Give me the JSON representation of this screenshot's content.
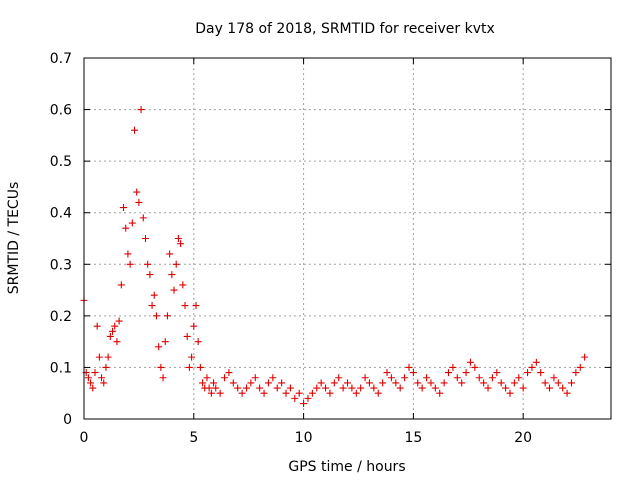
{
  "chart_data": {
    "type": "scatter",
    "title": "Day 178 of 2018, SRMTID for receiver kvtx",
    "xlabel": "GPS time / hours",
    "ylabel": "SRMTID / TECUs",
    "xlim": [
      0,
      24
    ],
    "ylim": [
      0,
      0.7
    ],
    "xticks": [
      0,
      5,
      10,
      15,
      20
    ],
    "yticks": [
      0,
      0.1,
      0.2,
      0.3,
      0.4,
      0.5,
      0.6,
      0.7
    ],
    "xtick_labels": [
      "0",
      "5",
      "10",
      "15",
      "20"
    ],
    "ytick_labels": [
      "0",
      "0.1",
      "0.2",
      "0.3",
      "0.4",
      "0.5",
      "0.6",
      "0.7"
    ],
    "grid": true,
    "marker": "+",
    "color": "#e00000",
    "series": [
      {
        "name": "SRMTID",
        "x": [
          0.0,
          0.1,
          0.2,
          0.3,
          0.4,
          0.5,
          0.6,
          0.7,
          0.8,
          0.9,
          1.0,
          1.1,
          1.2,
          1.3,
          1.4,
          1.5,
          1.6,
          1.7,
          1.8,
          1.9,
          2.0,
          2.1,
          2.2,
          2.3,
          2.4,
          2.5,
          2.6,
          2.7,
          2.8,
          2.9,
          3.0,
          3.1,
          3.2,
          3.3,
          3.4,
          3.5,
          3.6,
          3.7,
          3.8,
          3.9,
          4.0,
          4.1,
          4.2,
          4.3,
          4.4,
          4.5,
          4.6,
          4.7,
          4.8,
          4.9,
          5.0,
          5.1,
          5.2,
          5.3,
          5.4,
          5.5,
          5.6,
          5.7,
          5.8,
          5.9,
          6.0,
          6.2,
          6.4,
          6.6,
          6.8,
          7.0,
          7.2,
          7.4,
          7.6,
          7.8,
          8.0,
          8.2,
          8.4,
          8.6,
          8.8,
          9.0,
          9.2,
          9.4,
          9.6,
          9.8,
          10.0,
          10.2,
          10.4,
          10.6,
          10.8,
          11.0,
          11.2,
          11.4,
          11.6,
          11.8,
          12.0,
          12.2,
          12.4,
          12.6,
          12.8,
          13.0,
          13.2,
          13.4,
          13.6,
          13.8,
          14.0,
          14.2,
          14.4,
          14.6,
          14.8,
          15.0,
          15.2,
          15.4,
          15.6,
          15.8,
          16.0,
          16.2,
          16.4,
          16.6,
          16.8,
          17.0,
          17.2,
          17.4,
          17.6,
          17.8,
          18.0,
          18.2,
          18.4,
          18.6,
          18.8,
          19.0,
          19.2,
          19.4,
          19.6,
          19.8,
          20.0,
          20.2,
          20.4,
          20.6,
          20.8,
          21.0,
          21.2,
          21.4,
          21.6,
          21.8,
          22.0,
          22.2,
          22.4,
          22.6,
          22.8
        ],
        "y": [
          0.23,
          0.09,
          0.08,
          0.07,
          0.06,
          0.09,
          0.18,
          0.12,
          0.08,
          0.07,
          0.1,
          0.12,
          0.16,
          0.17,
          0.18,
          0.15,
          0.19,
          0.26,
          0.41,
          0.37,
          0.32,
          0.3,
          0.38,
          0.56,
          0.44,
          0.42,
          0.6,
          0.39,
          0.35,
          0.3,
          0.28,
          0.22,
          0.24,
          0.2,
          0.14,
          0.1,
          0.08,
          0.15,
          0.2,
          0.32,
          0.28,
          0.25,
          0.3,
          0.35,
          0.34,
          0.26,
          0.22,
          0.16,
          0.1,
          0.12,
          0.18,
          0.22,
          0.15,
          0.1,
          0.07,
          0.06,
          0.08,
          0.06,
          0.05,
          0.07,
          0.06,
          0.05,
          0.08,
          0.09,
          0.07,
          0.06,
          0.05,
          0.06,
          0.07,
          0.08,
          0.06,
          0.05,
          0.07,
          0.08,
          0.06,
          0.07,
          0.05,
          0.06,
          0.04,
          0.05,
          0.03,
          0.04,
          0.05,
          0.06,
          0.07,
          0.06,
          0.05,
          0.07,
          0.08,
          0.06,
          0.07,
          0.06,
          0.05,
          0.06,
          0.08,
          0.07,
          0.06,
          0.05,
          0.07,
          0.09,
          0.08,
          0.07,
          0.06,
          0.08,
          0.1,
          0.09,
          0.07,
          0.06,
          0.08,
          0.07,
          0.06,
          0.05,
          0.07,
          0.09,
          0.1,
          0.08,
          0.07,
          0.09,
          0.11,
          0.1,
          0.08,
          0.07,
          0.06,
          0.08,
          0.09,
          0.07,
          0.06,
          0.05,
          0.07,
          0.08,
          0.06,
          0.09,
          0.1,
          0.11,
          0.09,
          0.07,
          0.06,
          0.08,
          0.07,
          0.06,
          0.05,
          0.07,
          0.09,
          0.1,
          0.12
        ]
      }
    ]
  }
}
